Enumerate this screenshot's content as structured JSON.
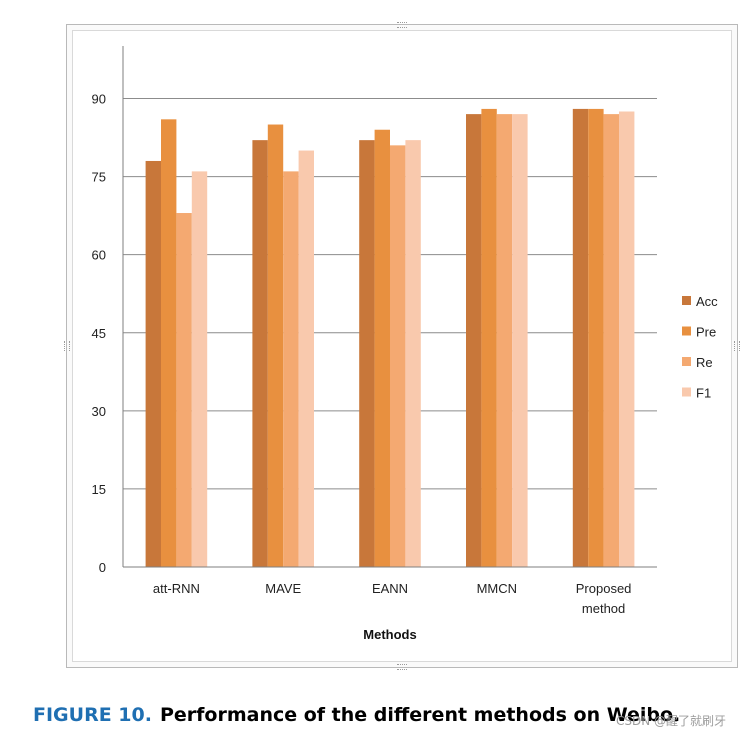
{
  "chart_data": {
    "type": "bar",
    "title": "",
    "xlabel": "Methods",
    "ylabel": "",
    "ylim": [
      0,
      100
    ],
    "yticks": [
      0,
      15,
      30,
      45,
      60,
      75,
      90
    ],
    "grid": true,
    "legend_position": "right",
    "categories": [
      [
        "att-RNN"
      ],
      [
        "MAVE"
      ],
      [
        "EANN"
      ],
      [
        "MMCN"
      ],
      [
        "Proposed",
        "method"
      ]
    ],
    "series": [
      {
        "name": "Acc",
        "color": "#c8773a",
        "values": [
          78,
          82,
          82,
          87,
          88
        ]
      },
      {
        "name": "Pre",
        "color": "#e8903f",
        "values": [
          86,
          85,
          84,
          88,
          88
        ]
      },
      {
        "name": "Re",
        "color": "#f4a971",
        "values": [
          68,
          76,
          81,
          87,
          87
        ]
      },
      {
        "name": "F1",
        "color": "#f9c9ad",
        "values": [
          76,
          80,
          82,
          87,
          87.5
        ]
      }
    ]
  },
  "caption": {
    "figure_label": "FIGURE 10.",
    "text": "Performance of the different methods on Weibo."
  },
  "watermark": "CSDN @醒了就刷牙"
}
